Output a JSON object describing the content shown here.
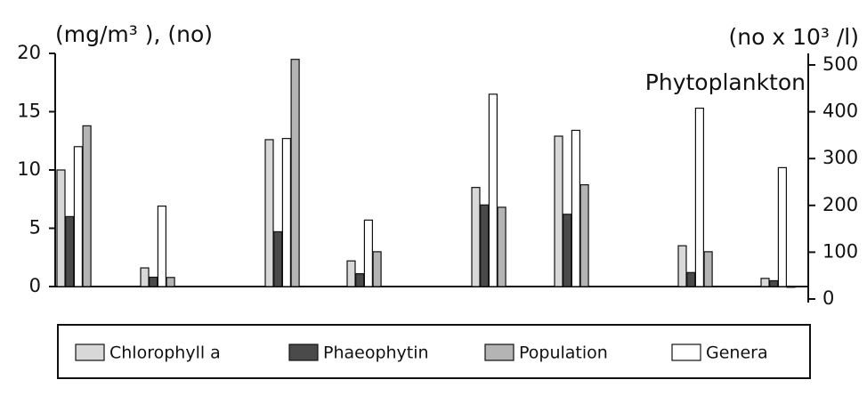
{
  "chart_data": {
    "type": "bar",
    "title": "Phytoplankton",
    "y_label": "(mg/m³ ), (no)",
    "y2_label": "(no x 10³ /l)",
    "categories": [
      null,
      null,
      null,
      null,
      null,
      null,
      null,
      null
    ],
    "series": [
      {
        "name": "Chlorophyll a",
        "color": "#d8d8d8",
        "values": [
          10,
          1.6,
          12.6,
          2.2,
          8.5,
          12.9,
          3.5,
          0.7
        ]
      },
      {
        "name": "Phaeophytin",
        "color": "#4a4a4a",
        "values": [
          6,
          0.8,
          4.7,
          1.1,
          7.0,
          6.2,
          1.2,
          0.5
        ]
      },
      {
        "name": "Population",
        "color": "#b4b4b4",
        "axis": "y2",
        "values": [
          370,
          46,
          512,
          101,
          196,
          244,
          101,
          25
        ]
      },
      {
        "name": "Genera",
        "color": "#ffffff",
        "values": [
          12,
          6.9,
          12.7,
          5.7,
          16.5,
          13.4,
          15.3,
          10.2
        ]
      }
    ],
    "ylim": [
      0,
      20
    ],
    "yticks": [
      0,
      5,
      10,
      15,
      20
    ],
    "y2lim": [
      0,
      500
    ],
    "y2ticks": [
      0,
      100,
      200,
      300,
      400,
      500
    ],
    "legend": "bottom"
  }
}
